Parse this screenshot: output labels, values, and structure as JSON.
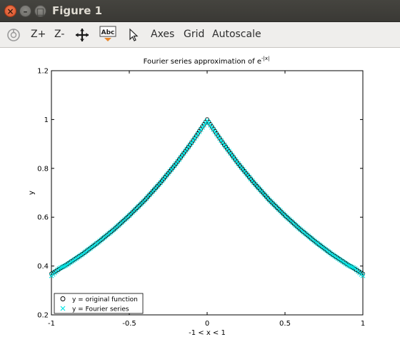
{
  "window": {
    "title": "Figure 1",
    "close_glyph": "×",
    "min_glyph": "–",
    "max_glyph": "□"
  },
  "toolbar": {
    "zoom_in_label": "Z+",
    "zoom_out_label": "Z-",
    "axes_label": "Axes",
    "grid_label": "Grid",
    "autoscale_label": "Autoscale",
    "text_tool_label": "Abc"
  },
  "chart_data": {
    "type": "scatter",
    "title": "Fourier series approximation of e",
    "title_superscript": "-|x|",
    "xlabel": "-1 < x < 1",
    "ylabel": "y",
    "xlim": [
      -1,
      1
    ],
    "ylim": [
      0.2,
      1.2
    ],
    "x_ticks": [
      {
        "value": -1,
        "label": "-1"
      },
      {
        "value": -0.5,
        "label": "-0.5"
      },
      {
        "value": 0,
        "label": "0"
      },
      {
        "value": 0.5,
        "label": "0.5"
      },
      {
        "value": 1,
        "label": "1"
      }
    ],
    "y_ticks": [
      {
        "value": 0.2,
        "label": "0.2"
      },
      {
        "value": 0.4,
        "label": "0.4"
      },
      {
        "value": 0.6,
        "label": "0.6"
      },
      {
        "value": 0.8,
        "label": "0.8"
      },
      {
        "value": 1,
        "label": "1"
      },
      {
        "value": 1.2,
        "label": "1.2"
      }
    ],
    "grid": false,
    "legend_position": "bottom-left",
    "series": [
      {
        "name": "y = original function",
        "marker": "circle",
        "color": "#000000",
        "x": [
          -1.0,
          -0.9,
          -0.8,
          -0.7,
          -0.6,
          -0.5,
          -0.4,
          -0.3,
          -0.2,
          -0.1,
          0.0,
          0.1,
          0.2,
          0.3,
          0.4,
          0.5,
          0.6,
          0.7,
          0.8,
          0.9,
          1.0
        ],
        "y": [
          0.368,
          0.407,
          0.449,
          0.497,
          0.549,
          0.607,
          0.67,
          0.741,
          0.819,
          0.905,
          1.0,
          0.905,
          0.819,
          0.741,
          0.67,
          0.607,
          0.549,
          0.497,
          0.449,
          0.407,
          0.368
        ]
      },
      {
        "name": "y = Fourier series",
        "marker": "x",
        "color": "#00e5e5",
        "x": [
          -1.0,
          -0.95,
          -0.9,
          -0.8,
          -0.7,
          -0.6,
          -0.5,
          -0.4,
          -0.3,
          -0.2,
          -0.1,
          -0.05,
          0.0,
          0.05,
          0.1,
          0.2,
          0.3,
          0.4,
          0.5,
          0.6,
          0.7,
          0.8,
          0.9,
          0.95,
          1.0
        ],
        "y": [
          0.36,
          0.39,
          0.405,
          0.449,
          0.497,
          0.549,
          0.607,
          0.67,
          0.741,
          0.819,
          0.905,
          0.95,
          0.995,
          0.95,
          0.905,
          0.819,
          0.741,
          0.67,
          0.607,
          0.549,
          0.497,
          0.449,
          0.405,
          0.39,
          0.36
        ]
      }
    ]
  }
}
